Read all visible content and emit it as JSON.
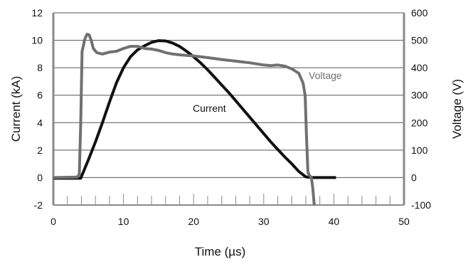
{
  "chart_data": {
    "type": "line",
    "title": "",
    "xlabel": "Time (µs)",
    "ylabel_left": "Current (kA)",
    "ylabel_right": "Voltage (V)",
    "xlim": [
      0,
      50
    ],
    "ylim_left": [
      -2,
      12
    ],
    "ylim_right": [
      -100,
      600
    ],
    "x_ticks": [
      "0",
      "10",
      "20",
      "30",
      "40",
      "50"
    ],
    "y_left_ticks": [
      "-2",
      "0",
      "2",
      "4",
      "6",
      "8",
      "10",
      "12"
    ],
    "y_right_ticks": [
      "-100",
      "0",
      "100",
      "200",
      "300",
      "400",
      "500",
      "600"
    ],
    "grid": "horizontal",
    "colors": {
      "current": "#111111",
      "voltage": "#707070",
      "grid": "#555555",
      "axis": "#8a8a8a"
    },
    "series": [
      {
        "name": "Current",
        "axis": "left",
        "x": [
          0,
          3.9,
          5,
          6,
          7,
          8,
          9,
          10,
          11,
          12,
          13,
          14,
          15,
          16,
          17,
          18,
          19,
          20,
          21,
          22,
          23,
          24,
          25,
          26,
          27,
          28,
          29,
          30,
          31,
          32,
          33,
          34,
          35,
          36,
          37,
          38,
          40.3
        ],
        "y": [
          -0.05,
          -0.05,
          1.3,
          2.6,
          4.0,
          5.5,
          6.9,
          8.0,
          8.8,
          9.3,
          9.6,
          9.85,
          9.97,
          9.95,
          9.8,
          9.55,
          9.2,
          8.8,
          8.35,
          7.85,
          7.3,
          6.75,
          6.2,
          5.6,
          5.0,
          4.4,
          3.8,
          3.2,
          2.6,
          2.05,
          1.5,
          1.0,
          0.45,
          0.05,
          0.0,
          0.0,
          0.0
        ]
      },
      {
        "name": "Voltage",
        "axis": "right",
        "x": [
          0,
          3.4,
          3.7,
          3.9,
          4.1,
          4.5,
          4.8,
          5.1,
          5.4,
          5.7,
          6.2,
          7,
          8,
          9,
          10,
          11,
          12,
          13,
          14,
          15,
          16,
          17,
          18,
          20,
          22,
          24,
          26,
          28,
          30,
          31,
          32,
          33,
          34,
          35,
          35.6,
          35.9,
          36.1,
          36.3,
          36.5,
          36.8,
          37.0,
          37.2
        ],
        "y": [
          0,
          2,
          12,
          200,
          460,
          505,
          522,
          520,
          500,
          470,
          455,
          450,
          457,
          460,
          470,
          478,
          478,
          470,
          468,
          463,
          455,
          450,
          447,
          443,
          437,
          430,
          424,
          418,
          410,
          408,
          410,
          406,
          396,
          380,
          345,
          300,
          150,
          20,
          8,
          0,
          -40,
          -100
        ]
      }
    ],
    "annotations": [
      {
        "text": "Current",
        "series": "Current"
      },
      {
        "text": "Voltage",
        "series": "Voltage"
      }
    ]
  }
}
